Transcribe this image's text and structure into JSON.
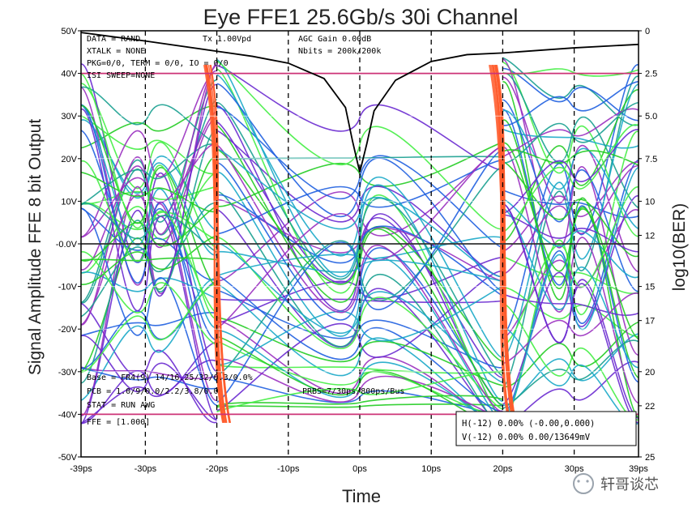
{
  "chart_data": {
    "type": "line",
    "title": "Eye FFE1 25.6Gb/s 30i Channel",
    "xlabel": "Time",
    "ylabel": "Signal Amplitude FFE 8 bit Output",
    "y2label": "log10(BER)",
    "xlim": [
      -39,
      39
    ],
    "ylim": [
      -50,
      50
    ],
    "y2lim": [
      0,
      -25
    ],
    "x_ticks": [
      -39,
      -30,
      -20,
      -10,
      0,
      10,
      20,
      30,
      39
    ],
    "x_tick_labels": [
      "-39ps",
      "-30ps",
      "-20ps",
      "-10ps",
      "0ps",
      "10ps",
      "20ps",
      "30ps",
      "39ps"
    ],
    "y_ticks": [
      50,
      40,
      30,
      20,
      10,
      0,
      -10,
      -20,
      -30,
      -40,
      -50
    ],
    "y_tick_labels": [
      "50V",
      "40V",
      "30V",
      "20V",
      "10V",
      "-0.0V",
      "-10V",
      "-20V",
      "-30V",
      "-40V",
      "-50V"
    ],
    "y2_ticks": [
      0,
      -2.5,
      -5.0,
      -7.5,
      -10,
      -12,
      -15,
      -17,
      -20,
      -22,
      -25
    ],
    "y2_tick_labels": [
      "0",
      "2.5",
      "5.0",
      "7.5",
      "10",
      "12",
      "15",
      "17",
      "20",
      "22",
      "25"
    ],
    "grid": true,
    "eye_colors": [
      "#22cc22",
      "#44ee44",
      "#1aa8c8",
      "#2060e0",
      "#6a2ad0",
      "#9a30c0",
      "#18a090",
      "#ff5a2a"
    ],
    "eye_levels": [
      40,
      30,
      20,
      10,
      0,
      -10,
      -20,
      -30,
      -40
    ],
    "crossing_times": [
      -20,
      20
    ],
    "bathtub": {
      "name": "BER bathtub",
      "color": "#000000",
      "x": [
        -39,
        -30,
        -20,
        -15,
        -10,
        -5,
        -2,
        -1,
        0,
        1,
        2,
        5,
        10,
        15,
        20,
        30,
        39
      ],
      "y2": [
        -0.1,
        -0.6,
        -1.2,
        -1.5,
        -1.9,
        -2.8,
        -4.5,
        -6.5,
        -8.3,
        -6.6,
        -4.7,
        -2.9,
        -1.8,
        -1.4,
        -1.3,
        -1.0,
        -0.8
      ]
    },
    "reference_lines": [
      {
        "y": 40,
        "color": "#cc3377"
      },
      {
        "y": 0,
        "color": "#333333"
      },
      {
        "y": -40,
        "color": "#cc3377"
      }
    ],
    "annotations": {
      "top_left": [
        "DATA = RAND",
        "XTALK = NONE",
        "PKG=0/0, TERM = 0/0, IO = 0/0",
        "ISI SWEEP=NONE"
      ],
      "top_mid": "Tx 1.00Vpd",
      "top_right": [
        "AGC Gain 0.00dB",
        "Nbits = 200k/200k"
      ],
      "bottom_left": [
        "Base = FR4(9) 14/16.25/32/0.3/0.0%",
        "PCB = 1.0/9/0.0/2.2/3.8/0.0",
        "STAT = RUN AWG"
      ],
      "bottom_mid": "PRBS=7/30ps/800ps/Bus",
      "ffe": "FFE = [1.000]",
      "legend_box": [
        "H(-12) 0.00% (-0.00,0.000)",
        "V(-12) 0.00% 0.00/13649mV"
      ]
    }
  },
  "watermark": "轩哥谈芯"
}
